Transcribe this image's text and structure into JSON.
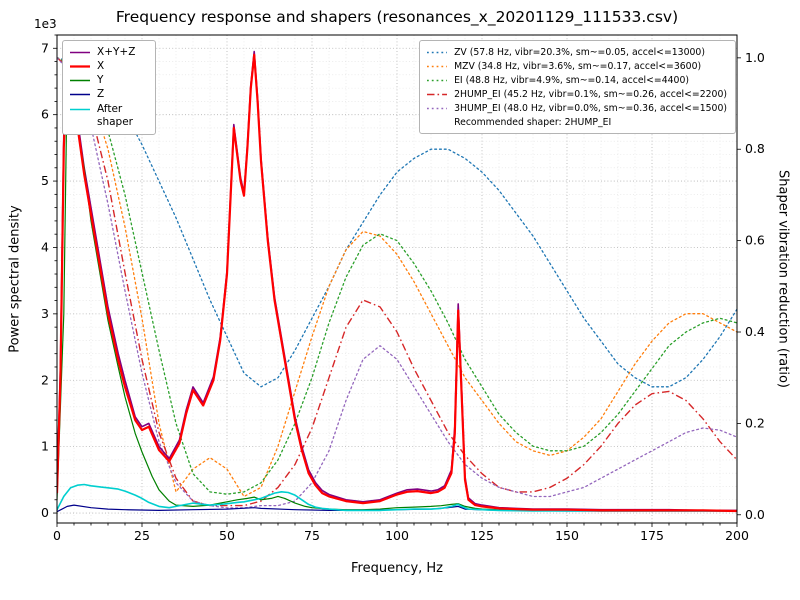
{
  "title": "Frequency response and shapers (resonances_x_20201129_111533.csv)",
  "axes": {
    "x": {
      "label": "Frequency, Hz",
      "min": 0,
      "max": 200,
      "tick_values": [
        0,
        25,
        50,
        75,
        100,
        125,
        150,
        175,
        200
      ],
      "tick_labels": [
        "0",
        "25",
        "50",
        "75",
        "100",
        "125",
        "150",
        "175",
        "200"
      ],
      "minor_step": 5
    },
    "y_left": {
      "label": "Power spectral density",
      "offset_text": "1e3",
      "min": -0.15,
      "max": 7.2,
      "tick_values": [
        0,
        1,
        2,
        3,
        4,
        5,
        6,
        7
      ],
      "tick_labels": [
        "0",
        "1",
        "2",
        "3",
        "4",
        "5",
        "6",
        "7"
      ],
      "minor_step": 0.2
    },
    "y_right": {
      "label": "Shaper vibration reduction (ratio)",
      "min": -0.018,
      "max": 1.05,
      "tick_values": [
        0,
        0.2,
        0.4,
        0.6,
        0.8,
        1.0
      ],
      "tick_labels": [
        "0.0",
        "0.2",
        "0.4",
        "0.6",
        "0.8",
        "1.0"
      ]
    }
  },
  "legend_left": {
    "items": [
      {
        "label": "X+Y+Z",
        "color": "#800080",
        "style": "solid",
        "width": 1.6
      },
      {
        "label": "X",
        "color": "#ff0000",
        "style": "solid",
        "width": 2.2
      },
      {
        "label": "Y",
        "color": "#008000",
        "style": "solid",
        "width": 1.4
      },
      {
        "label": "Z",
        "color": "#00008b",
        "style": "solid",
        "width": 1.4
      },
      {
        "label": "After shaper",
        "color": "#00cfcf",
        "style": "solid",
        "width": 1.6
      }
    ]
  },
  "legend_right": {
    "items": [
      {
        "label": "ZV (57.8 Hz, vibr=20.3%, sm~=0.05, accel<=13000)",
        "color": "#1f77b4",
        "style": "dotted",
        "width": 1.4
      },
      {
        "label": "MZV (34.8 Hz, vibr=3.6%, sm~=0.17, accel<=3600)",
        "color": "#ff7f0e",
        "style": "dotted",
        "width": 1.4
      },
      {
        "label": "EI (48.8 Hz, vibr=4.9%, sm~=0.14, accel<=4400)",
        "color": "#2ca02c",
        "style": "dotted",
        "width": 1.4
      },
      {
        "label": "2HUMP_EI (45.2 Hz, vibr=0.1%, sm~=0.26, accel<=2200)",
        "color": "#d62728",
        "style": "dashdot",
        "width": 1.4
      },
      {
        "label": "3HUMP_EI (48.0 Hz, vibr=0.0%, sm~=0.36, accel<=1500)",
        "color": "#9467bd",
        "style": "dotted",
        "width": 1.4
      }
    ],
    "note": "Recommended shaper: 2HUMP_EI"
  },
  "chart_data": {
    "type": "line",
    "title": "Frequency response and shapers (resonances_x_20201129_111533.csv)",
    "xlabel": "Frequency, Hz",
    "ylabel_left": "Power spectral density (1e3)",
    "ylabel_right": "Shaper vibration reduction (ratio)",
    "xlim": [
      0,
      200
    ],
    "ylim_left_1e3": [
      0,
      7
    ],
    "ylim_right": [
      0,
      1
    ],
    "grid": "major+minor",
    "shaper_x": [
      0,
      5,
      10,
      15,
      20,
      25,
      30,
      35,
      40,
      45,
      50,
      55,
      60,
      65,
      70,
      75,
      80,
      85,
      90,
      95,
      100,
      105,
      110,
      115,
      120,
      125,
      130,
      135,
      140,
      145,
      150,
      155,
      160,
      165,
      170,
      175,
      180,
      185,
      190,
      195,
      200
    ],
    "series": [
      {
        "name": "zv",
        "label": "ZV",
        "axis": "right",
        "color": "#1f77b4",
        "style": "dotted",
        "width": 1.3,
        "y": [
          1.0,
          0.99,
          0.97,
          0.93,
          0.88,
          0.81,
          0.73,
          0.65,
          0.56,
          0.47,
          0.39,
          0.31,
          0.28,
          0.3,
          0.36,
          0.43,
          0.5,
          0.58,
          0.64,
          0.7,
          0.75,
          0.78,
          0.8,
          0.8,
          0.78,
          0.75,
          0.71,
          0.66,
          0.61,
          0.55,
          0.49,
          0.43,
          0.38,
          0.33,
          0.3,
          0.28,
          0.28,
          0.3,
          0.34,
          0.39,
          0.45
        ]
      },
      {
        "name": "mzv",
        "label": "MZV",
        "axis": "right",
        "color": "#ff7f0e",
        "style": "dotted",
        "width": 1.3,
        "y": [
          1.0,
          0.98,
          0.92,
          0.8,
          0.63,
          0.43,
          0.2,
          0.05,
          0.1,
          0.125,
          0.1,
          0.04,
          0.06,
          0.15,
          0.27,
          0.39,
          0.5,
          0.58,
          0.62,
          0.61,
          0.57,
          0.51,
          0.44,
          0.37,
          0.3,
          0.25,
          0.2,
          0.16,
          0.14,
          0.13,
          0.14,
          0.17,
          0.21,
          0.27,
          0.33,
          0.38,
          0.42,
          0.44,
          0.44,
          0.42,
          0.4
        ]
      },
      {
        "name": "ei",
        "label": "EI",
        "axis": "right",
        "color": "#2ca02c",
        "style": "dotted",
        "width": 1.3,
        "y": [
          1.0,
          0.98,
          0.93,
          0.84,
          0.7,
          0.53,
          0.36,
          0.2,
          0.09,
          0.05,
          0.045,
          0.05,
          0.07,
          0.12,
          0.2,
          0.3,
          0.42,
          0.52,
          0.59,
          0.615,
          0.6,
          0.55,
          0.49,
          0.42,
          0.34,
          0.28,
          0.22,
          0.18,
          0.15,
          0.14,
          0.14,
          0.15,
          0.18,
          0.22,
          0.27,
          0.32,
          0.37,
          0.4,
          0.42,
          0.43,
          0.42
        ]
      },
      {
        "name": "2hump_ei",
        "label": "2HUMP_EI",
        "axis": "right",
        "color": "#d62728",
        "style": "dashdot",
        "width": 1.4,
        "y": [
          1.0,
          0.97,
          0.88,
          0.73,
          0.53,
          0.34,
          0.18,
          0.08,
          0.03,
          0.02,
          0.02,
          0.02,
          0.03,
          0.06,
          0.11,
          0.19,
          0.3,
          0.41,
          0.47,
          0.455,
          0.4,
          0.32,
          0.25,
          0.18,
          0.13,
          0.09,
          0.06,
          0.05,
          0.05,
          0.06,
          0.08,
          0.11,
          0.15,
          0.2,
          0.24,
          0.265,
          0.27,
          0.25,
          0.21,
          0.16,
          0.12
        ]
      },
      {
        "name": "3hump_ei",
        "label": "3HUMP_EI",
        "axis": "right",
        "color": "#9467bd",
        "style": "dotted",
        "width": 1.3,
        "y": [
          1.0,
          0.96,
          0.85,
          0.68,
          0.49,
          0.31,
          0.16,
          0.07,
          0.03,
          0.02,
          0.015,
          0.015,
          0.02,
          0.02,
          0.03,
          0.07,
          0.14,
          0.25,
          0.34,
          0.37,
          0.34,
          0.28,
          0.22,
          0.16,
          0.11,
          0.08,
          0.06,
          0.05,
          0.04,
          0.04,
          0.05,
          0.06,
          0.08,
          0.1,
          0.12,
          0.14,
          0.16,
          0.18,
          0.19,
          0.185,
          0.17
        ]
      },
      {
        "name": "xyz",
        "label": "X+Y+Z",
        "axis": "left",
        "color": "#800080",
        "style": "solid",
        "width": 1.6,
        "x": [
          0,
          1,
          2,
          3,
          5,
          8,
          10,
          13,
          15,
          18,
          20,
          23,
          25,
          27,
          30,
          33,
          36,
          38,
          40,
          43,
          46,
          48,
          50,
          52,
          54,
          55,
          56,
          57,
          58,
          59,
          60,
          62,
          64,
          66,
          68,
          70,
          72,
          74,
          76,
          78,
          80,
          85,
          90,
          95,
          100,
          103,
          106,
          110,
          112,
          114,
          116,
          117,
          118,
          119,
          120,
          121,
          123,
          125,
          130,
          135,
          140,
          150,
          160,
          170,
          180,
          190,
          200
        ],
        "y": [
          0.35,
          2.2,
          5.7,
          7.0,
          6.3,
          5.2,
          4.6,
          3.7,
          3.1,
          2.4,
          2.0,
          1.45,
          1.3,
          1.35,
          1.0,
          0.82,
          1.1,
          1.55,
          1.9,
          1.66,
          2.05,
          2.65,
          3.65,
          5.85,
          5.05,
          4.82,
          5.55,
          6.45,
          6.95,
          6.25,
          5.35,
          4.15,
          3.25,
          2.65,
          2.05,
          1.45,
          1.0,
          0.65,
          0.46,
          0.34,
          0.28,
          0.2,
          0.17,
          0.2,
          0.3,
          0.35,
          0.36,
          0.33,
          0.35,
          0.41,
          0.65,
          1.3,
          3.15,
          1.9,
          0.55,
          0.23,
          0.14,
          0.12,
          0.08,
          0.07,
          0.06,
          0.06,
          0.05,
          0.05,
          0.05,
          0.04,
          0.04
        ]
      },
      {
        "name": "y_psd",
        "label": "Y",
        "axis": "left",
        "color": "#008000",
        "style": "solid",
        "width": 1.2,
        "x": [
          0,
          2,
          3,
          5,
          8,
          10,
          13,
          15,
          18,
          20,
          23,
          25,
          28,
          30,
          33,
          35,
          40,
          45,
          48,
          50,
          53,
          56,
          58,
          60,
          63,
          65,
          67,
          70,
          73,
          75,
          80,
          85,
          90,
          95,
          100,
          105,
          110,
          113,
          116,
          118,
          120,
          123,
          125,
          130,
          140,
          150,
          160,
          170,
          180,
          190,
          200
        ],
        "y": [
          0.2,
          3.0,
          6.6,
          6.1,
          5.2,
          4.4,
          3.5,
          2.9,
          2.2,
          1.75,
          1.2,
          0.92,
          0.55,
          0.35,
          0.18,
          0.12,
          0.1,
          0.12,
          0.15,
          0.17,
          0.2,
          0.22,
          0.24,
          0.2,
          0.22,
          0.25,
          0.22,
          0.15,
          0.1,
          0.08,
          0.06,
          0.05,
          0.05,
          0.06,
          0.08,
          0.09,
          0.1,
          0.11,
          0.13,
          0.14,
          0.1,
          0.07,
          0.06,
          0.05,
          0.04,
          0.04,
          0.03,
          0.03,
          0.03,
          0.03,
          0.03
        ]
      },
      {
        "name": "z_psd",
        "label": "Z",
        "axis": "left",
        "color": "#00008b",
        "style": "solid",
        "width": 1.2,
        "x": [
          0,
          3,
          5,
          10,
          15,
          20,
          30,
          40,
          50,
          58,
          60,
          70,
          80,
          90,
          100,
          110,
          115,
          118,
          120,
          130,
          150,
          170,
          200
        ],
        "y": [
          0.02,
          0.1,
          0.12,
          0.08,
          0.06,
          0.05,
          0.04,
          0.05,
          0.06,
          0.08,
          0.07,
          0.05,
          0.04,
          0.04,
          0.05,
          0.06,
          0.08,
          0.1,
          0.06,
          0.04,
          0.03,
          0.03,
          0.03
        ]
      },
      {
        "name": "after_shaper",
        "label": "After shaper",
        "axis": "left",
        "color": "#00cfcf",
        "style": "solid",
        "width": 1.6,
        "x": [
          0,
          2,
          4,
          6,
          8,
          10,
          13,
          15,
          18,
          20,
          23,
          25,
          27,
          30,
          33,
          35,
          38,
          40,
          43,
          45,
          48,
          50,
          53,
          55,
          58,
          60,
          62,
          64,
          66,
          68,
          70,
          72,
          74,
          76,
          78,
          80,
          85,
          90,
          95,
          100,
          105,
          110,
          113,
          116,
          118,
          119,
          121,
          125,
          130,
          140,
          150,
          160,
          170,
          180,
          190,
          200
        ],
        "y": [
          0.05,
          0.25,
          0.38,
          0.42,
          0.43,
          0.41,
          0.39,
          0.38,
          0.36,
          0.33,
          0.27,
          0.22,
          0.16,
          0.1,
          0.08,
          0.1,
          0.13,
          0.15,
          0.13,
          0.12,
          0.13,
          0.14,
          0.16,
          0.17,
          0.2,
          0.22,
          0.26,
          0.3,
          0.32,
          0.31,
          0.27,
          0.2,
          0.13,
          0.09,
          0.07,
          0.06,
          0.04,
          0.04,
          0.04,
          0.05,
          0.06,
          0.06,
          0.07,
          0.1,
          0.13,
          0.1,
          0.06,
          0.05,
          0.04,
          0.03,
          0.03,
          0.03,
          0.03,
          0.03,
          0.03,
          0.03
        ]
      },
      {
        "name": "x_psd",
        "label": "X",
        "axis": "left",
        "color": "#ff0000",
        "style": "solid",
        "width": 2.2,
        "x": [
          0,
          1,
          2,
          3,
          5,
          8,
          10,
          13,
          15,
          18,
          20,
          23,
          25,
          27,
          30,
          33,
          36,
          38,
          40,
          43,
          46,
          48,
          50,
          52,
          54,
          55,
          56,
          57,
          58,
          59,
          60,
          62,
          64,
          66,
          68,
          70,
          72,
          74,
          76,
          78,
          80,
          85,
          90,
          95,
          100,
          103,
          106,
          110,
          112,
          114,
          116,
          117,
          118,
          119,
          120,
          121,
          123,
          125,
          130,
          135,
          140,
          150,
          160,
          170,
          180,
          190,
          200
        ],
        "y": [
          0.3,
          2.0,
          5.5,
          6.9,
          6.2,
          5.1,
          4.5,
          3.6,
          3.0,
          2.3,
          1.9,
          1.4,
          1.25,
          1.3,
          0.95,
          0.78,
          1.05,
          1.5,
          1.85,
          1.62,
          2.0,
          2.6,
          3.6,
          5.8,
          5.0,
          4.78,
          5.5,
          6.4,
          6.9,
          6.2,
          5.3,
          4.1,
          3.2,
          2.6,
          2.0,
          1.4,
          0.95,
          0.6,
          0.42,
          0.3,
          0.25,
          0.18,
          0.15,
          0.18,
          0.28,
          0.32,
          0.33,
          0.3,
          0.32,
          0.38,
          0.6,
          1.2,
          3.05,
          1.8,
          0.5,
          0.2,
          0.12,
          0.1,
          0.07,
          0.06,
          0.05,
          0.05,
          0.04,
          0.04,
          0.04,
          0.04,
          0.03
        ]
      }
    ]
  }
}
